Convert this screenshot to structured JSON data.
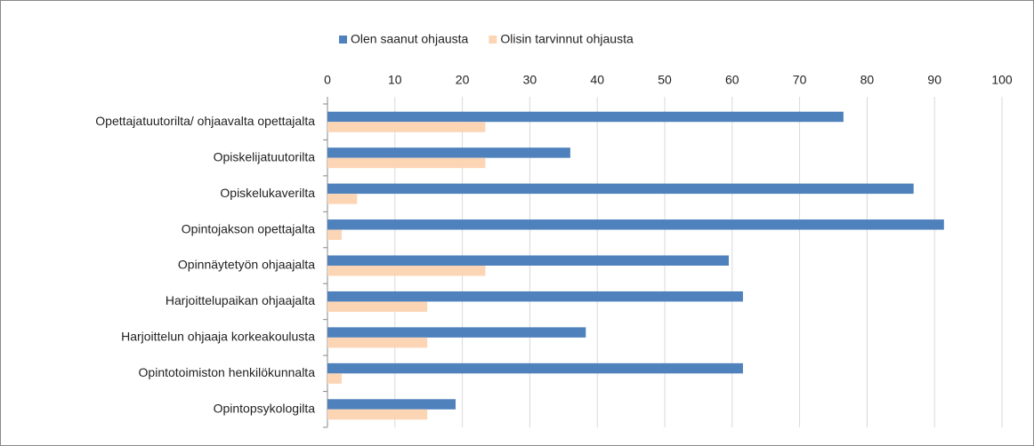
{
  "chart_data": {
    "type": "hbar",
    "categories": [
      "Opettajatuutorilta/ ohjaavalta opettajalta",
      "Opiskelijatuutorilta",
      "Opiskelukaverilta",
      "Opintojakson opettajalta",
      "Opinnäytetyön ohjaajalta",
      "Harjoittelupaikan ohjaajalta",
      "Harjoittelun ohjaaja korkeakoulusta",
      "Opintotoimiston henkilökunnalta",
      "Opintopsykologilta"
    ],
    "series": [
      {
        "name": "Olen saanut ohjausta",
        "color": "#4f81bd",
        "values": [
          76.5,
          36,
          86.9,
          91.4,
          59.5,
          61.6,
          38.3,
          61.6,
          19
        ]
      },
      {
        "name": "Olisin tarvinnut ohjausta",
        "color": "#fcd5b5",
        "values": [
          23.4,
          23.4,
          4.4,
          2.1,
          23.4,
          14.8,
          14.8,
          2.1,
          14.8
        ]
      }
    ],
    "xlim": [
      0,
      100
    ],
    "xticks": [
      0,
      10,
      20,
      30,
      40,
      50,
      60,
      70,
      80,
      90,
      100
    ],
    "grid": true,
    "legend": "top"
  }
}
